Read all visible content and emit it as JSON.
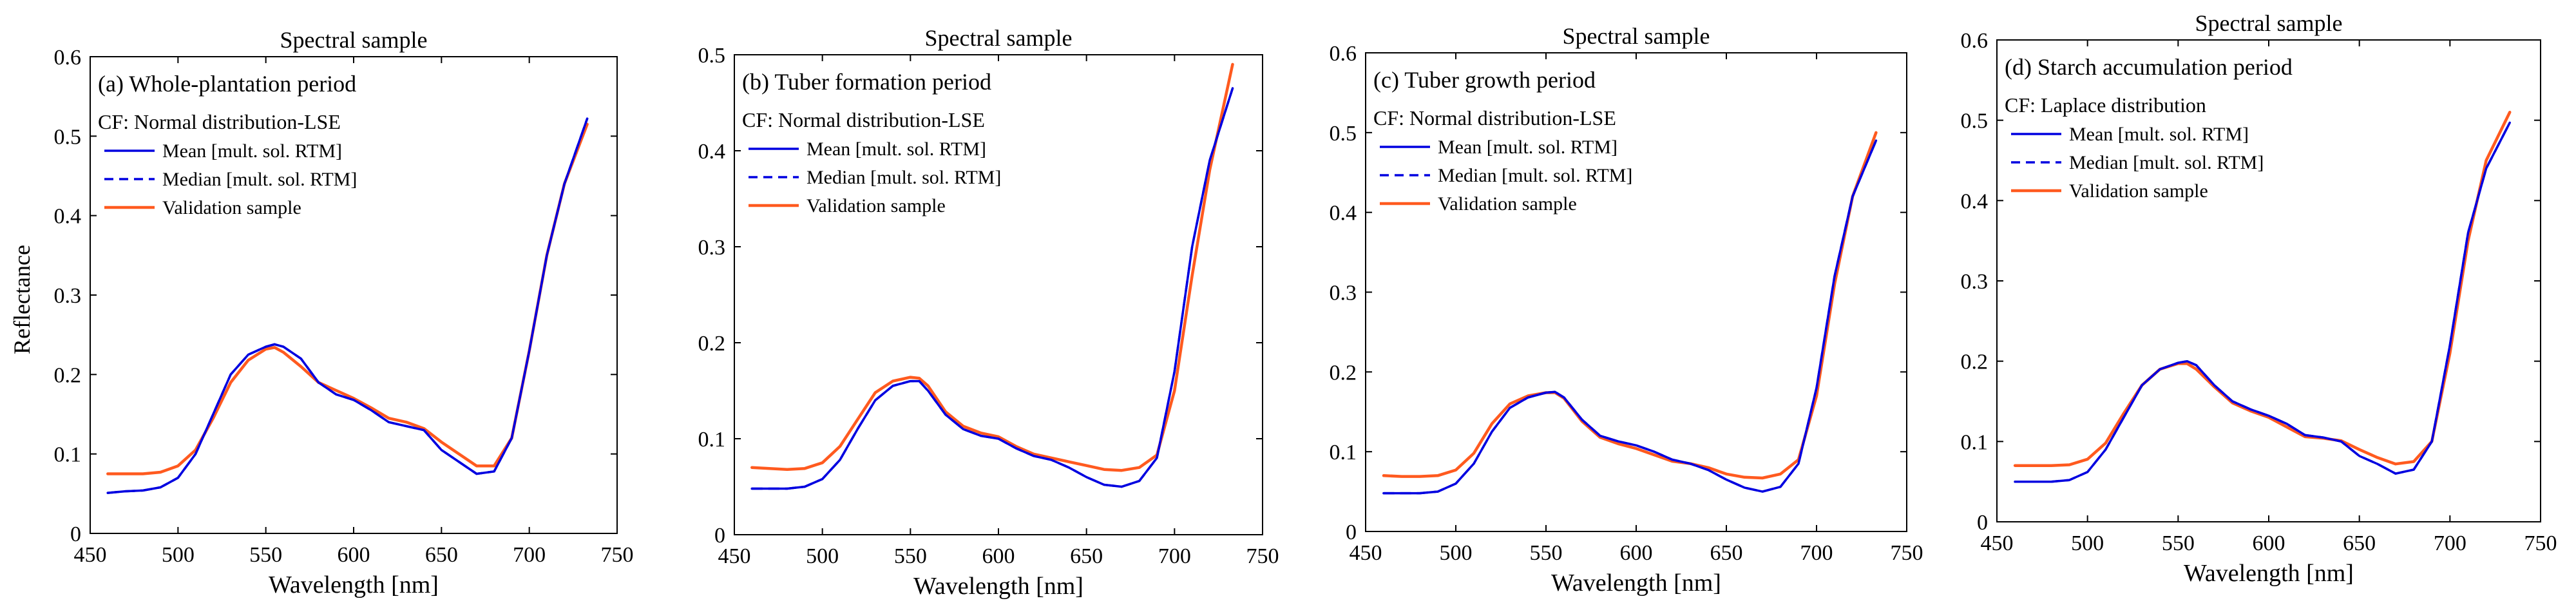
{
  "figure": {
    "y_label": "Reflectance",
    "x_label": "Wavelength [nm]"
  },
  "legend_labels": {
    "mean": "Mean [mult. sol. RTM]",
    "median": "Median [mult. sol. RTM]",
    "validation": "Validation sample"
  },
  "colors": {
    "mean": "#0000e0",
    "median": "#0000e0",
    "validation": "#ff5a1f",
    "axis": "#000000"
  },
  "chart_data": [
    {
      "type": "line",
      "title": "Spectral sample",
      "panel_label": "(a) Whole-plantation period",
      "cf_label": "CF: Normal distribution-LSE",
      "xlabel": "Wavelength [nm]",
      "ylabel": "Reflectance",
      "xlim": [
        450,
        750
      ],
      "ylim": [
        0,
        0.6
      ],
      "xticks": [
        450,
        500,
        550,
        600,
        650,
        700,
        750
      ],
      "yticks": [
        0,
        0.1,
        0.2,
        0.3,
        0.4,
        0.5,
        0.6
      ],
      "ytick_labels": [
        "0",
        "0.1",
        "0.2",
        "0.3",
        "0.4",
        "0.5",
        "0.6"
      ],
      "x": [
        460,
        470,
        480,
        490,
        500,
        510,
        520,
        530,
        540,
        550,
        555,
        560,
        570,
        580,
        590,
        600,
        610,
        620,
        630,
        640,
        650,
        660,
        670,
        680,
        690,
        700,
        710,
        720,
        733
      ],
      "series": [
        {
          "name": "Mean [mult. sol. RTM]",
          "key": "mean",
          "values": [
            0.051,
            0.053,
            0.054,
            0.058,
            0.07,
            0.1,
            0.15,
            0.2,
            0.225,
            0.235,
            0.238,
            0.235,
            0.22,
            0.19,
            0.175,
            0.168,
            0.155,
            0.14,
            0.135,
            0.13,
            0.105,
            0.09,
            0.075,
            0.078,
            0.12,
            0.23,
            0.35,
            0.44,
            0.522
          ]
        },
        {
          "name": "Median [mult. sol. RTM]",
          "key": "median",
          "values": [
            0.051,
            0.053,
            0.054,
            0.058,
            0.07,
            0.1,
            0.15,
            0.2,
            0.225,
            0.235,
            0.238,
            0.235,
            0.22,
            0.19,
            0.175,
            0.168,
            0.155,
            0.14,
            0.135,
            0.13,
            0.105,
            0.09,
            0.075,
            0.078,
            0.12,
            0.23,
            0.35,
            0.44,
            0.522
          ]
        },
        {
          "name": "Validation sample",
          "key": "validation",
          "values": [
            0.075,
            0.075,
            0.075,
            0.077,
            0.085,
            0.105,
            0.145,
            0.19,
            0.218,
            0.232,
            0.234,
            0.228,
            0.21,
            0.19,
            0.18,
            0.17,
            0.158,
            0.145,
            0.14,
            0.132,
            0.115,
            0.1,
            0.085,
            0.085,
            0.12,
            0.23,
            0.35,
            0.44,
            0.515
          ]
        }
      ]
    },
    {
      "type": "line",
      "title": "Spectral sample",
      "panel_label": "(b) Tuber formation period",
      "cf_label": "CF: Normal distribution-LSE",
      "xlabel": "Wavelength [nm]",
      "ylabel": "",
      "xlim": [
        450,
        750
      ],
      "ylim": [
        0,
        0.5
      ],
      "xticks": [
        450,
        500,
        550,
        600,
        650,
        700,
        750
      ],
      "yticks": [
        0,
        0.1,
        0.2,
        0.3,
        0.4,
        0.5
      ],
      "ytick_labels": [
        "0",
        "0.1",
        "0.2",
        "0.3",
        "0.4",
        "0.5"
      ],
      "x": [
        460,
        470,
        480,
        490,
        500,
        510,
        520,
        530,
        540,
        550,
        555,
        560,
        570,
        580,
        590,
        600,
        610,
        620,
        630,
        640,
        650,
        660,
        670,
        680,
        690,
        700,
        710,
        720,
        733
      ],
      "series": [
        {
          "name": "Mean [mult. sol. RTM]",
          "key": "mean",
          "values": [
            0.048,
            0.048,
            0.048,
            0.05,
            0.058,
            0.078,
            0.11,
            0.14,
            0.155,
            0.16,
            0.16,
            0.15,
            0.125,
            0.11,
            0.103,
            0.1,
            0.09,
            0.082,
            0.078,
            0.07,
            0.06,
            0.052,
            0.05,
            0.056,
            0.08,
            0.17,
            0.3,
            0.39,
            0.465
          ]
        },
        {
          "name": "Median [mult. sol. RTM]",
          "key": "median",
          "values": [
            0.048,
            0.048,
            0.048,
            0.05,
            0.058,
            0.078,
            0.11,
            0.14,
            0.155,
            0.16,
            0.16,
            0.15,
            0.125,
            0.11,
            0.103,
            0.1,
            0.09,
            0.082,
            0.078,
            0.07,
            0.06,
            0.052,
            0.05,
            0.056,
            0.08,
            0.17,
            0.3,
            0.39,
            0.465
          ]
        },
        {
          "name": "Validation sample",
          "key": "validation",
          "values": [
            0.07,
            0.069,
            0.068,
            0.069,
            0.075,
            0.092,
            0.12,
            0.148,
            0.16,
            0.164,
            0.163,
            0.155,
            0.128,
            0.113,
            0.106,
            0.102,
            0.092,
            0.084,
            0.08,
            0.076,
            0.072,
            0.068,
            0.067,
            0.07,
            0.083,
            0.15,
            0.27,
            0.38,
            0.49
          ]
        }
      ]
    },
    {
      "type": "line",
      "title": "Spectral sample",
      "panel_label": "(c) Tuber growth period",
      "cf_label": "CF: Normal distribution-LSE",
      "xlabel": "Wavelength [nm]",
      "ylabel": "",
      "xlim": [
        450,
        750
      ],
      "ylim": [
        0,
        0.6
      ],
      "xticks": [
        450,
        500,
        550,
        600,
        650,
        700,
        750
      ],
      "yticks": [
        0,
        0.1,
        0.2,
        0.3,
        0.4,
        0.5,
        0.6
      ],
      "ytick_labels": [
        "0",
        "0.1",
        "0.2",
        "0.3",
        "0.4",
        "0.5",
        "0.6"
      ],
      "x": [
        460,
        470,
        480,
        490,
        500,
        510,
        520,
        530,
        540,
        550,
        555,
        560,
        570,
        580,
        590,
        600,
        610,
        620,
        630,
        640,
        650,
        660,
        670,
        680,
        690,
        700,
        710,
        720,
        733
      ],
      "series": [
        {
          "name": "Mean [mult. sol. RTM]",
          "key": "mean",
          "values": [
            0.048,
            0.048,
            0.048,
            0.05,
            0.06,
            0.085,
            0.125,
            0.155,
            0.168,
            0.174,
            0.175,
            0.168,
            0.14,
            0.12,
            0.113,
            0.108,
            0.1,
            0.09,
            0.085,
            0.077,
            0.065,
            0.055,
            0.05,
            0.056,
            0.085,
            0.18,
            0.32,
            0.42,
            0.49
          ]
        },
        {
          "name": "Median [mult. sol. RTM]",
          "key": "median",
          "values": [
            0.048,
            0.048,
            0.048,
            0.05,
            0.06,
            0.085,
            0.125,
            0.155,
            0.168,
            0.174,
            0.175,
            0.168,
            0.14,
            0.12,
            0.113,
            0.108,
            0.1,
            0.09,
            0.085,
            0.077,
            0.065,
            0.055,
            0.05,
            0.056,
            0.085,
            0.18,
            0.32,
            0.42,
            0.49
          ]
        },
        {
          "name": "Validation sample",
          "key": "validation",
          "values": [
            0.07,
            0.069,
            0.069,
            0.07,
            0.077,
            0.098,
            0.135,
            0.16,
            0.17,
            0.174,
            0.174,
            0.167,
            0.138,
            0.118,
            0.11,
            0.104,
            0.096,
            0.088,
            0.085,
            0.08,
            0.072,
            0.068,
            0.067,
            0.072,
            0.09,
            0.17,
            0.31,
            0.42,
            0.5
          ]
        }
      ]
    },
    {
      "type": "line",
      "title": "Spectral sample",
      "panel_label": "(d) Starch accumulation period",
      "cf_label": "CF: Laplace distribution",
      "xlabel": "Wavelength [nm]",
      "ylabel": "",
      "xlim": [
        450,
        750
      ],
      "ylim": [
        0,
        0.6
      ],
      "xticks": [
        450,
        500,
        550,
        600,
        650,
        700,
        750
      ],
      "yticks": [
        0,
        0.1,
        0.2,
        0.3,
        0.4,
        0.5,
        0.6
      ],
      "ytick_labels": [
        "0",
        "0.1",
        "0.2",
        "0.3",
        "0.4",
        "0.5",
        "0.6"
      ],
      "x": [
        460,
        470,
        480,
        490,
        500,
        510,
        520,
        530,
        540,
        550,
        555,
        560,
        570,
        580,
        590,
        600,
        610,
        620,
        630,
        640,
        650,
        660,
        670,
        680,
        690,
        700,
        710,
        720,
        733
      ],
      "series": [
        {
          "name": "Mean [mult. sol. RTM]",
          "key": "mean",
          "values": [
            0.05,
            0.05,
            0.05,
            0.052,
            0.062,
            0.09,
            0.13,
            0.17,
            0.19,
            0.198,
            0.2,
            0.195,
            0.17,
            0.15,
            0.14,
            0.132,
            0.122,
            0.108,
            0.105,
            0.1,
            0.082,
            0.072,
            0.06,
            0.065,
            0.1,
            0.22,
            0.36,
            0.44,
            0.497
          ]
        },
        {
          "name": "Median [mult. sol. RTM]",
          "key": "median",
          "values": [
            0.05,
            0.05,
            0.05,
            0.052,
            0.062,
            0.09,
            0.13,
            0.17,
            0.19,
            0.198,
            0.2,
            0.195,
            0.17,
            0.15,
            0.14,
            0.132,
            0.122,
            0.108,
            0.105,
            0.1,
            0.082,
            0.072,
            0.06,
            0.065,
            0.1,
            0.22,
            0.36,
            0.44,
            0.497
          ]
        },
        {
          "name": "Validation sample",
          "key": "validation",
          "values": [
            0.07,
            0.07,
            0.07,
            0.071,
            0.078,
            0.098,
            0.135,
            0.17,
            0.19,
            0.197,
            0.197,
            0.19,
            0.168,
            0.148,
            0.138,
            0.13,
            0.118,
            0.106,
            0.104,
            0.101,
            0.09,
            0.08,
            0.072,
            0.075,
            0.1,
            0.21,
            0.35,
            0.45,
            0.51
          ]
        }
      ]
    }
  ]
}
